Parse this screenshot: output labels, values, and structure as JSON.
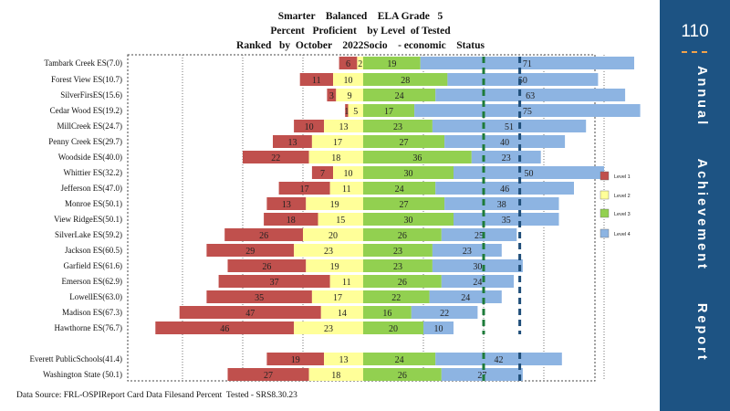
{
  "title_lines": [
    "Smarter    Balanced    ELA Grade   5",
    "Percent   Proficient    by Level  of Tested",
    "Ranked   by  October    2022Socio    - economic    Status"
  ],
  "source_note": "Data Source: FRL-OSPIReport Card Data Filesand Percent  Tested - SRS8.30.23",
  "side_panel": {
    "page_number": "110",
    "title": "Annual  Achievement  Report"
  },
  "colors": {
    "level1": "#c0504d",
    "level2": "#ffff99",
    "level3": "#92d050",
    "level4": "#8db4e2",
    "band": "#1d5383",
    "marker_green": "#1e7b3a",
    "marker_blue": "#1f4e79"
  },
  "chart_data": {
    "type": "bar",
    "orientation": "horizontal-diverging",
    "legend": {
      "placement": "right",
      "entries": [
        "Level 1",
        "Level 2",
        "Level 3",
        "Level 4"
      ]
    },
    "x_range": [
      -70,
      90
    ],
    "grid": true,
    "reference_lines": {
      "green_dashed": 40,
      "blue_dashed": 52
    },
    "rows": [
      {
        "label": "Tambark Creek ES(7.0)",
        "l1": 6,
        "l2": 2,
        "l3": 19,
        "l4": 71
      },
      {
        "label": "Forest View ES(10.7)",
        "l1": 11,
        "l2": 10,
        "l3": 28,
        "l4": 50
      },
      {
        "label": "SilverFirsES(15.6)",
        "l1": 3,
        "l2": 9,
        "l3": 24,
        "l4": 63
      },
      {
        "label": "Cedar Wood ES(19.2)",
        "l1": 1,
        "l2": 5,
        "l3": 17,
        "l4": 75
      },
      {
        "label": "MillCreek ES(24.7)",
        "l1": 10,
        "l2": 13,
        "l3": 23,
        "l4": 51
      },
      {
        "label": "Penny Creek ES(29.7)",
        "l1": 13,
        "l2": 17,
        "l3": 27,
        "l4": 40
      },
      {
        "label": "Woodside ES(40.0)",
        "l1": 22,
        "l2": 18,
        "l3": 36,
        "l4": 23
      },
      {
        "label": "Whittier ES(32.2)",
        "l1": 7,
        "l2": 10,
        "l3": 30,
        "l4": 50
      },
      {
        "label": "Jefferson   ES(47.0)",
        "l1": 17,
        "l2": 11,
        "l3": 24,
        "l4": 46
      },
      {
        "label": "Monroe  ES(50.1)",
        "l1": 13,
        "l2": 19,
        "l3": 27,
        "l4": 38
      },
      {
        "label": "View RidgeES(50.1)",
        "l1": 18,
        "l2": 15,
        "l3": 30,
        "l4": 35
      },
      {
        "label": "SilverLake ES(59.2)",
        "l1": 26,
        "l2": 20,
        "l3": 26,
        "l4": 25
      },
      {
        "label": "Jackson ES(60.5)",
        "l1": 29,
        "l2": 23,
        "l3": 23,
        "l4": 23
      },
      {
        "label": "Garfield ES(61.6)",
        "l1": 26,
        "l2": 19,
        "l3": 23,
        "l4": 30
      },
      {
        "label": "Emerson ES(62.9)",
        "l1": 37,
        "l2": 11,
        "l3": 26,
        "l4": 24
      },
      {
        "label": "LowellES(63.0)",
        "l1": 35,
        "l2": 17,
        "l3": 22,
        "l4": 24
      },
      {
        "label": "Madison ES(67.3)",
        "l1": 47,
        "l2": 14,
        "l3": 16,
        "l4": 22
      },
      {
        "label": "Hawthorne  ES(76.7)",
        "l1": 46,
        "l2": 23,
        "l3": 20,
        "l4": 10
      },
      {
        "label": "Everett  PublicSchools(41.4)",
        "l1": 19,
        "l2": 13,
        "l3": 24,
        "l4": 42
      },
      {
        "label": "Washington State (50.1)",
        "l1": 27,
        "l2": 18,
        "l3": 26,
        "l4": 27
      }
    ]
  }
}
